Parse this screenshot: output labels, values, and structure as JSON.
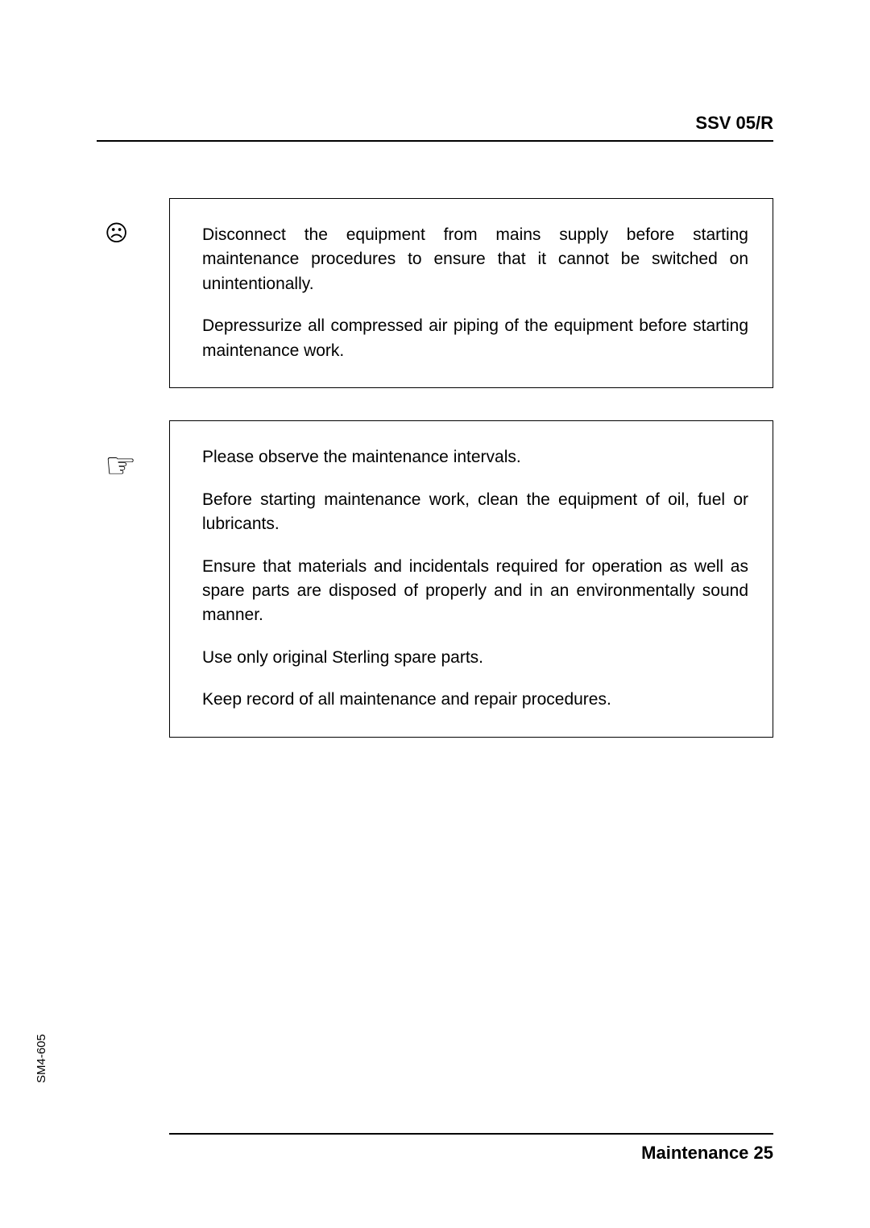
{
  "header": {
    "title": "SSV 05/R"
  },
  "box1": {
    "icon": "☹",
    "p1": "Disconnect the equipment from mains supply before starting maintenance procedures to ensure that it cannot be switched on unintentionally.",
    "p2": "Depressurize all compressed air piping of the equipment before starting maintenance work."
  },
  "box2": {
    "icon": "☞",
    "p1": "Please observe the maintenance intervals.",
    "p2": "Before starting maintenance work, clean the equipment of oil, fuel or lubricants.",
    "p3": "Ensure that materials and incidentals required for operation as well as spare parts are disposed of properly and in an environmentally sound manner.",
    "p4": "Use only original Sterling spare parts.",
    "p5": "Keep record of all maintenance and repair procedures."
  },
  "sideLabel": "SM4-605",
  "footer": {
    "text": "Maintenance 25"
  }
}
